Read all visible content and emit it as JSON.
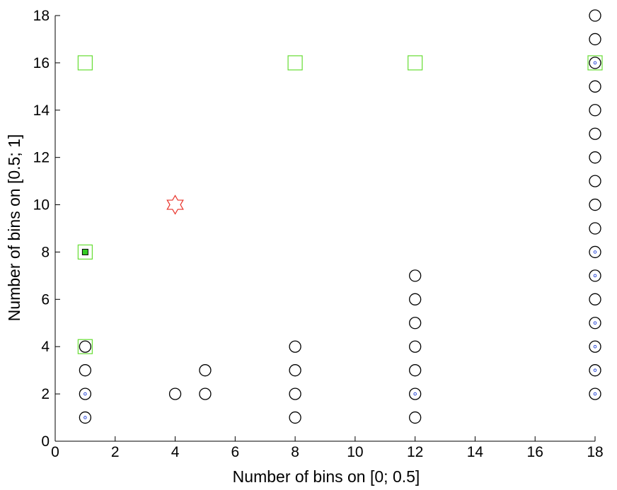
{
  "chart_data": {
    "type": "scatter",
    "title": "",
    "xlabel": "Number of bins on [0; 0.5]",
    "ylabel": "Number of bins on [0.5; 1]",
    "xlim": [
      0,
      18
    ],
    "ylim": [
      0,
      18
    ],
    "xticks": [
      0,
      2,
      4,
      6,
      8,
      10,
      12,
      14,
      16,
      18
    ],
    "yticks": [
      0,
      2,
      4,
      6,
      8,
      10,
      12,
      14,
      16,
      18
    ],
    "grid": false,
    "legend": "none",
    "series": [
      {
        "marker": "open-circle",
        "color": "#000000",
        "points": [
          [
            1,
            1
          ],
          [
            1,
            2
          ],
          [
            1,
            3
          ],
          [
            1,
            4
          ],
          [
            4,
            2
          ],
          [
            5,
            2
          ],
          [
            5,
            3
          ],
          [
            8,
            1
          ],
          [
            8,
            2
          ],
          [
            8,
            3
          ],
          [
            8,
            4
          ],
          [
            12,
            1
          ],
          [
            12,
            2
          ],
          [
            12,
            3
          ],
          [
            12,
            4
          ],
          [
            12,
            5
          ],
          [
            12,
            6
          ],
          [
            12,
            7
          ],
          [
            18,
            2
          ],
          [
            18,
            3
          ],
          [
            18,
            4
          ],
          [
            18,
            5
          ],
          [
            18,
            6
          ],
          [
            18,
            7
          ],
          [
            18,
            8
          ],
          [
            18,
            9
          ],
          [
            18,
            10
          ],
          [
            18,
            11
          ],
          [
            18,
            12
          ],
          [
            18,
            13
          ],
          [
            18,
            14
          ],
          [
            18,
            15
          ],
          [
            18,
            16
          ],
          [
            18,
            17
          ],
          [
            18,
            18
          ]
        ]
      },
      {
        "marker": "small-dot",
        "color": "#1f3fd6",
        "points": [
          [
            1,
            1
          ],
          [
            1,
            2
          ],
          [
            12,
            2
          ],
          [
            18,
            2
          ],
          [
            18,
            3
          ],
          [
            18,
            4
          ],
          [
            18,
            5
          ],
          [
            18,
            7
          ],
          [
            18,
            8
          ],
          [
            18,
            16
          ]
        ]
      },
      {
        "marker": "open-square",
        "color": "#66dd33",
        "points": [
          [
            1,
            4
          ],
          [
            1,
            8
          ],
          [
            1,
            16
          ],
          [
            8,
            16
          ],
          [
            12,
            16
          ],
          [
            18,
            16
          ]
        ]
      },
      {
        "marker": "filled-square",
        "color": "#33cc22",
        "points": [
          [
            1,
            8
          ]
        ]
      },
      {
        "marker": "hexagram",
        "color": "#e8332a",
        "points": [
          [
            4,
            10
          ]
        ]
      }
    ]
  }
}
